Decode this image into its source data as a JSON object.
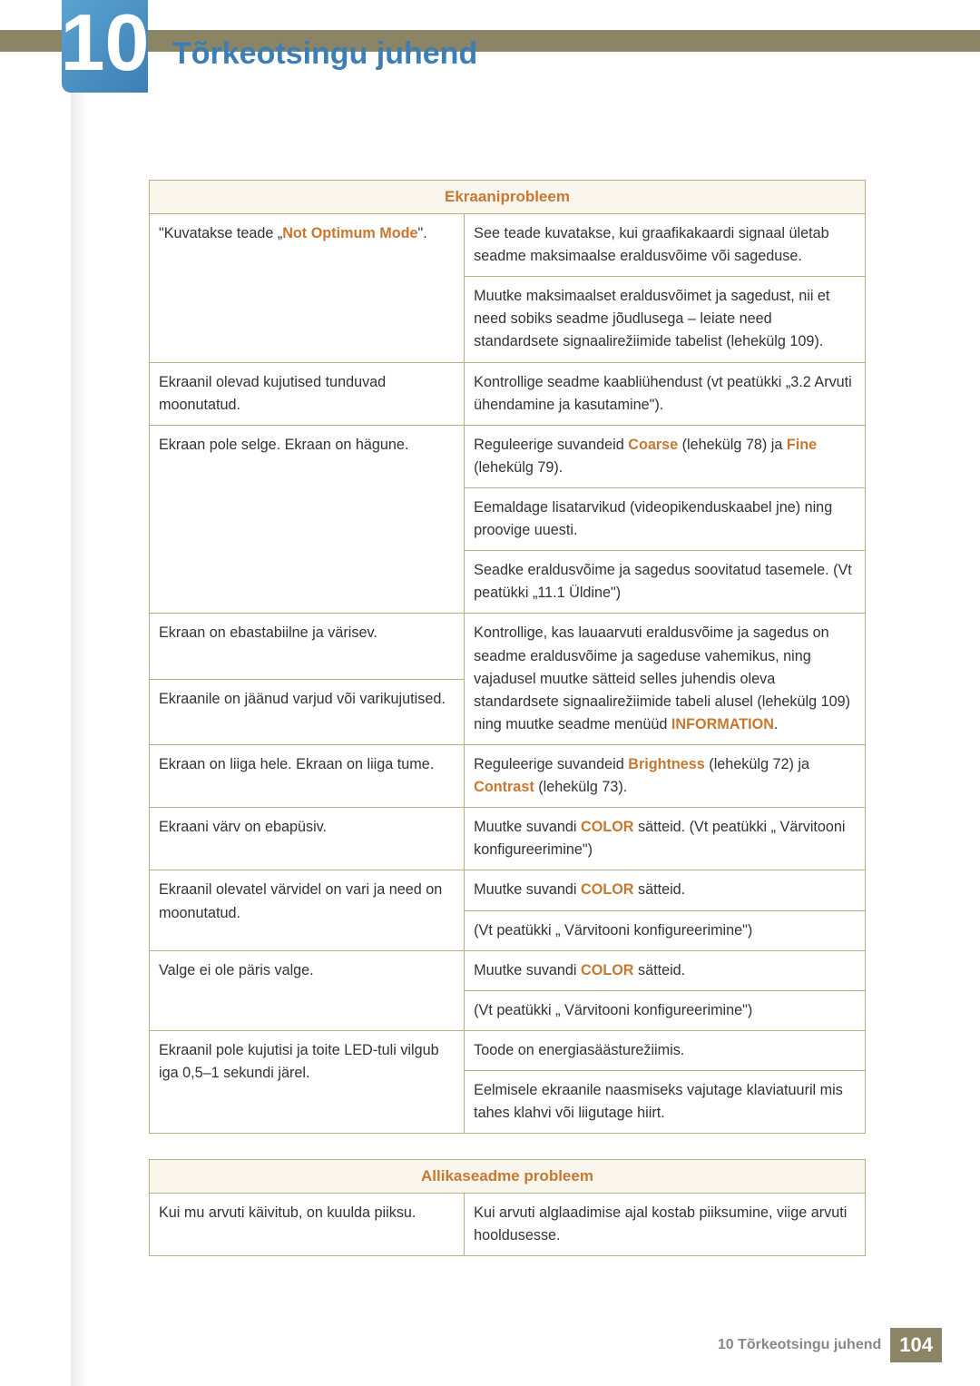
{
  "header": {
    "chapter_number": "10",
    "title": "Tõrkeotsingu juhend",
    "top_bar_color": "#8b8565",
    "chapter_bg_gradient": [
      "#5ba3d0",
      "#3d7fb5"
    ],
    "title_color": "#3d7fb5"
  },
  "table1": {
    "caption": "Ekraaniprobleem",
    "caption_bg": "#faf6ee",
    "caption_color": "#c77830",
    "border_color": "#b8ac89",
    "accent_color": "#c77830",
    "rows": [
      {
        "left": {
          "parts": [
            "\"Kuvatakse teade „",
            {
              "accent": "Not Optimum Mode"
            },
            "\"."
          ]
        },
        "left_rowspan": 2,
        "right": {
          "parts": [
            "See teade kuvatakse, kui graafikakaardi signaal ületab seadme maksimaalse eraldusvõime või sageduse."
          ]
        }
      },
      {
        "right": {
          "parts": [
            "Muutke maksimaalset eraldusvõimet ja sagedust, nii et need sobiks seadme jõudlusega – leiate need standardsete signaalirežiimide tabelist (lehekülg 109)."
          ]
        }
      },
      {
        "left": {
          "parts": [
            "Ekraanil olevad kujutised tunduvad moonutatud."
          ]
        },
        "right": {
          "parts": [
            "Kontrollige seadme kaabliühendust (vt peatükki „3.2 Arvuti ühendamine ja kasutamine\")."
          ]
        }
      },
      {
        "left": {
          "parts": [
            "Ekraan pole selge. Ekraan on hägune."
          ]
        },
        "left_rowspan": 3,
        "right": {
          "parts": [
            "Reguleerige suvandeid ",
            {
              "accent": "Coarse"
            },
            " (lehekülg 78) ja ",
            {
              "accent": "Fine"
            },
            " (lehekülg 79)."
          ]
        }
      },
      {
        "right": {
          "parts": [
            "Eemaldage lisatarvikud (videopikenduskaabel jne) ning proovige uuesti."
          ]
        }
      },
      {
        "right": {
          "parts": [
            "Seadke eraldusvõime ja sagedus soovitatud tasemele. (Vt peatükki „11.1 Üldine\")"
          ]
        }
      },
      {
        "left": {
          "parts": [
            "Ekraan on ebastabiilne ja värisev."
          ]
        },
        "right_rowspan": 2,
        "right": {
          "parts": [
            "Kontrollige, kas lauaarvuti eraldusvõime ja sagedus on seadme eraldusvõime ja sageduse vahemikus, ning vajadusel muutke sätteid selles juhendis oleva standardsete signaalirežiimide tabeli alusel (lehekülg 109) ning muutke seadme menüüd ",
            {
              "accent": "INFORMATION"
            },
            "."
          ]
        }
      },
      {
        "left": {
          "parts": [
            "Ekraanile on jäänud varjud või varikujutised."
          ]
        }
      },
      {
        "left": {
          "parts": [
            "Ekraan on liiga hele. Ekraan on liiga tume."
          ]
        },
        "right": {
          "parts": [
            "Reguleerige suvandeid ",
            {
              "accent": "Brightness"
            },
            " (lehekülg 72) ja ",
            {
              "accent": "Contrast"
            },
            " (lehekülg 73)."
          ]
        }
      },
      {
        "left": {
          "parts": [
            "Ekraani värv on ebapüsiv."
          ]
        },
        "right": {
          "parts": [
            "Muutke suvandi ",
            {
              "accent": "COLOR"
            },
            " sätteid. (Vt peatükki „ Värvitooni konfigureerimine\")"
          ]
        }
      },
      {
        "left": {
          "parts": [
            "Ekraanil olevatel värvidel on vari ja need on moonutatud."
          ]
        },
        "left_rowspan": 2,
        "right": {
          "parts": [
            "Muutke suvandi ",
            {
              "accent": "COLOR"
            },
            " sätteid."
          ]
        }
      },
      {
        "right": {
          "parts": [
            "(Vt peatükki „ Värvitooni konfigureerimine\")"
          ]
        }
      },
      {
        "left": {
          "parts": [
            "Valge ei ole päris valge."
          ]
        },
        "left_rowspan": 2,
        "right": {
          "parts": [
            "Muutke suvandi ",
            {
              "accent": "COLOR"
            },
            " sätteid."
          ]
        }
      },
      {
        "right": {
          "parts": [
            "(Vt peatükki „ Värvitooni konfigureerimine\")"
          ]
        }
      },
      {
        "left": {
          "parts": [
            "Ekraanil pole kujutisi ja toite LED-tuli vilgub iga 0,5–1 sekundi järel."
          ]
        },
        "left_rowspan": 2,
        "right": {
          "parts": [
            "Toode on energiasäästurežiimis."
          ]
        }
      },
      {
        "right": {
          "parts": [
            "Eelmisele ekraanile naasmiseks vajutage klaviatuuril mis tahes klahvi või liigutage hiirt."
          ]
        }
      }
    ]
  },
  "table2": {
    "caption": "Allikaseadme probleem",
    "rows": [
      {
        "left": {
          "parts": [
            "Kui mu arvuti käivitub, on kuulda piiksu."
          ]
        },
        "right": {
          "parts": [
            "Kui arvuti alglaadimise ajal kostab piiksumine, viige arvuti hooldusesse."
          ]
        }
      }
    ]
  },
  "footer": {
    "text": "10 Tõrkeotsingu juhend",
    "page": "104",
    "badge_bg": "#8b8565"
  }
}
